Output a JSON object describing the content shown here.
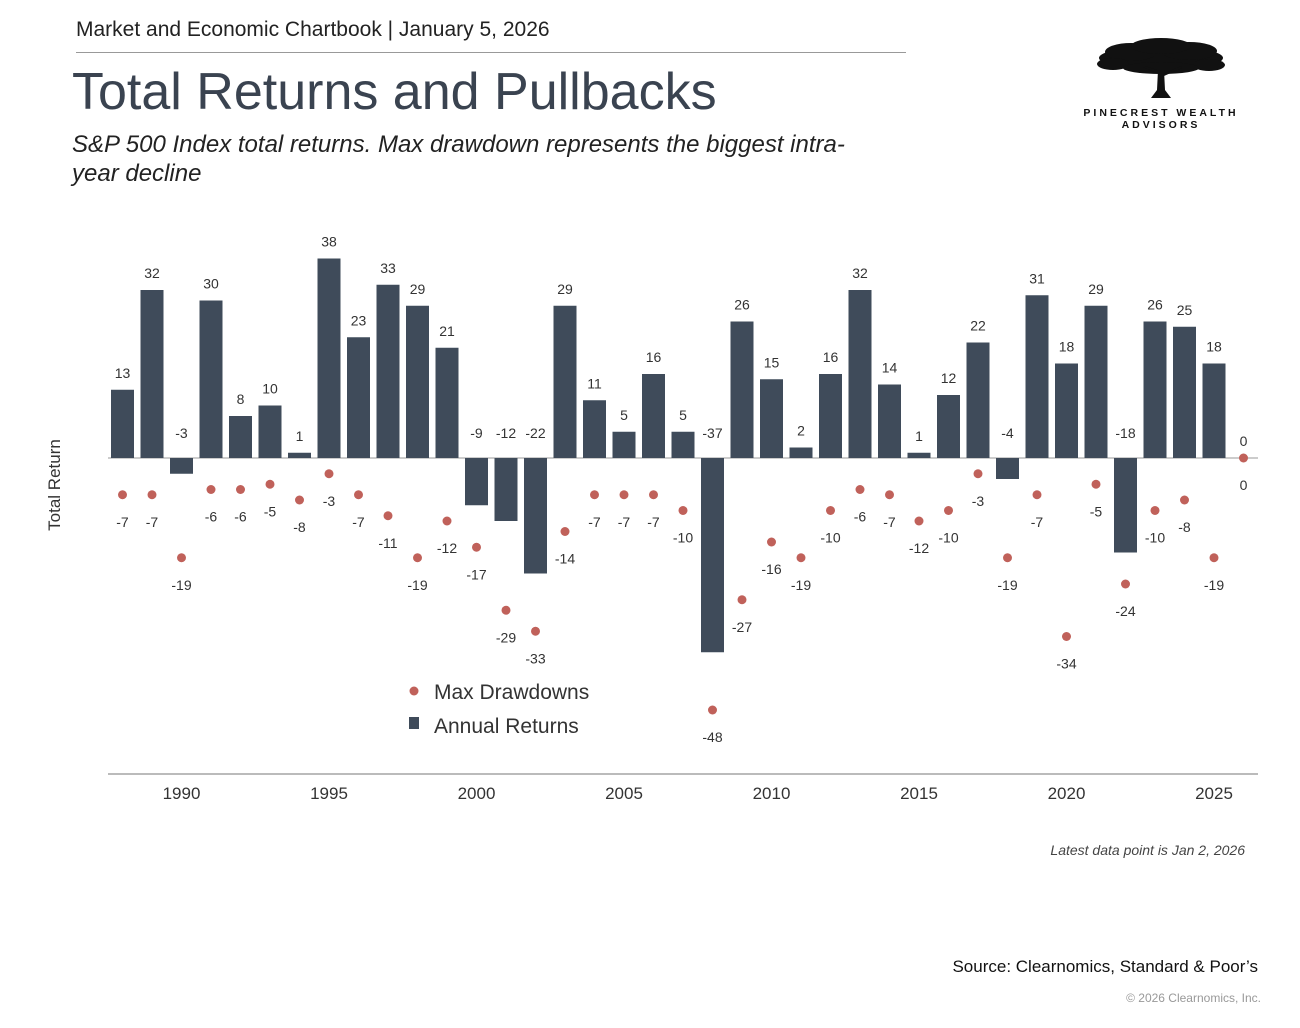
{
  "header": {
    "chartbook": "Market and Economic Chartbook | January 5, 2026",
    "title": "Total Returns and Pullbacks",
    "subtitle": "S&P 500 Index total returns. Max drawdown represents the biggest intra-year decline"
  },
  "logo": {
    "line1": "PINECREST WEALTH",
    "line2": "ADVISORS"
  },
  "footer": {
    "note": "Latest data point is Jan 2, 2026",
    "source": "Source: Clearnomics, Standard & Poor’s",
    "copyright": "© 2026 Clearnomics, Inc."
  },
  "colors": {
    "bar": "#3f4b5a",
    "dot": "#c0615a",
    "axis": "#999999"
  },
  "chart_data": {
    "type": "bar",
    "ylabel": "Total Return",
    "xticks": [
      1990,
      1995,
      2000,
      2005,
      2010,
      2015,
      2020,
      2025
    ],
    "ylim": [
      -54,
      42
    ],
    "legend": {
      "dots": "Max Drawdowns",
      "bars": "Annual Returns",
      "position": "bottom-left"
    },
    "years": [
      1988,
      1989,
      1990,
      1991,
      1992,
      1993,
      1994,
      1995,
      1996,
      1997,
      1998,
      1999,
      2000,
      2001,
      2002,
      2003,
      2004,
      2005,
      2006,
      2007,
      2008,
      2009,
      2010,
      2011,
      2012,
      2013,
      2014,
      2015,
      2016,
      2017,
      2018,
      2019,
      2020,
      2021,
      2022,
      2023,
      2024,
      2025,
      2026
    ],
    "series": [
      {
        "name": "Annual Returns",
        "values": [
          13,
          32,
          -3,
          30,
          8,
          10,
          1,
          38,
          23,
          33,
          29,
          21,
          -9,
          -12,
          -22,
          29,
          11,
          5,
          16,
          5,
          -37,
          26,
          15,
          2,
          16,
          32,
          14,
          1,
          12,
          22,
          -4,
          31,
          18,
          29,
          -18,
          26,
          25,
          18,
          0
        ]
      },
      {
        "name": "Max Drawdowns",
        "values": [
          -7,
          -7,
          -19,
          -6,
          -6,
          -5,
          -8,
          -3,
          -7,
          -11,
          -19,
          -12,
          -17,
          -29,
          -33,
          -14,
          -7,
          -7,
          -7,
          -10,
          -48,
          -27,
          -16,
          -19,
          -10,
          -6,
          -7,
          -12,
          -10,
          -3,
          -19,
          -7,
          -34,
          -5,
          -24,
          -10,
          -8,
          -19,
          0
        ]
      }
    ]
  }
}
